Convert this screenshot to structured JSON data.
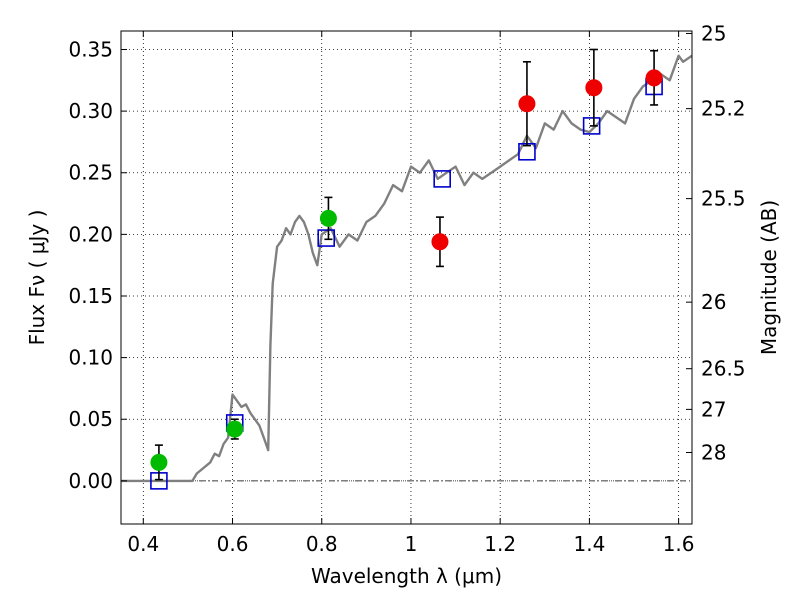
{
  "chart_data": {
    "type": "scatter",
    "xlabel": "Wavelength  λ (μm)",
    "ylabel": "Flux  Fν  ( μJy )",
    "y2label": "Magnitude (AB)",
    "xlim": [
      0.35,
      1.63
    ],
    "ylim": [
      -0.035,
      0.365
    ],
    "grid": true,
    "x_ticks": [
      {
        "value": 0.4,
        "label": "0.4"
      },
      {
        "value": 0.6,
        "label": "0.6"
      },
      {
        "value": 0.8,
        "label": "0.8"
      },
      {
        "value": 1.0,
        "label": "1"
      },
      {
        "value": 1.2,
        "label": "1.2"
      },
      {
        "value": 1.4,
        "label": "1.4"
      },
      {
        "value": 1.6,
        "label": "1.6"
      }
    ],
    "y_ticks": [
      {
        "value": 0.0,
        "label": "0.00"
      },
      {
        "value": 0.05,
        "label": "0.05"
      },
      {
        "value": 0.1,
        "label": "0.10"
      },
      {
        "value": 0.15,
        "label": "0.15"
      },
      {
        "value": 0.2,
        "label": "0.20"
      },
      {
        "value": 0.25,
        "label": "0.25"
      },
      {
        "value": 0.3,
        "label": "0.30"
      },
      {
        "value": 0.35,
        "label": "0.35"
      }
    ],
    "y2_ticks": [
      {
        "label": "25",
        "flux": 0.363
      },
      {
        "label": "25.2",
        "flux": 0.302
      },
      {
        "label": "25.5",
        "flux": 0.229
      },
      {
        "label": "26",
        "flux": 0.145
      },
      {
        "label": "26.5",
        "flux": 0.091
      },
      {
        "label": "27",
        "flux": 0.058
      },
      {
        "label": "28",
        "flux": 0.023
      }
    ],
    "series": [
      {
        "kind": "line",
        "color": "#808080",
        "points": [
          [
            0.35,
            0.0
          ],
          [
            0.51,
            0.0
          ],
          [
            0.52,
            0.006
          ],
          [
            0.55,
            0.015
          ],
          [
            0.56,
            0.022
          ],
          [
            0.57,
            0.02
          ],
          [
            0.58,
            0.03
          ],
          [
            0.59,
            0.035
          ],
          [
            0.6,
            0.07
          ],
          [
            0.61,
            0.065
          ],
          [
            0.62,
            0.06
          ],
          [
            0.63,
            0.062
          ],
          [
            0.64,
            0.055
          ],
          [
            0.65,
            0.05
          ],
          [
            0.66,
            0.045
          ],
          [
            0.67,
            0.035
          ],
          [
            0.68,
            0.025
          ],
          [
            0.685,
            0.11
          ],
          [
            0.69,
            0.16
          ],
          [
            0.7,
            0.19
          ],
          [
            0.71,
            0.195
          ],
          [
            0.72,
            0.205
          ],
          [
            0.73,
            0.2
          ],
          [
            0.74,
            0.21
          ],
          [
            0.75,
            0.215
          ],
          [
            0.76,
            0.21
          ],
          [
            0.77,
            0.2
          ],
          [
            0.78,
            0.185
          ],
          [
            0.79,
            0.175
          ],
          [
            0.8,
            0.2
          ],
          [
            0.82,
            0.205
          ],
          [
            0.84,
            0.19
          ],
          [
            0.86,
            0.2
          ],
          [
            0.88,
            0.195
          ],
          [
            0.9,
            0.21
          ],
          [
            0.92,
            0.215
          ],
          [
            0.94,
            0.225
          ],
          [
            0.96,
            0.24
          ],
          [
            0.98,
            0.235
          ],
          [
            1.0,
            0.255
          ],
          [
            1.02,
            0.25
          ],
          [
            1.04,
            0.26
          ],
          [
            1.06,
            0.245
          ],
          [
            1.08,
            0.25
          ],
          [
            1.1,
            0.255
          ],
          [
            1.12,
            0.24
          ],
          [
            1.14,
            0.25
          ],
          [
            1.16,
            0.245
          ],
          [
            1.18,
            0.25
          ],
          [
            1.2,
            0.255
          ],
          [
            1.22,
            0.26
          ],
          [
            1.24,
            0.265
          ],
          [
            1.26,
            0.28
          ],
          [
            1.28,
            0.27
          ],
          [
            1.3,
            0.29
          ],
          [
            1.32,
            0.285
          ],
          [
            1.34,
            0.3
          ],
          [
            1.36,
            0.29
          ],
          [
            1.38,
            0.285
          ],
          [
            1.4,
            0.283
          ],
          [
            1.42,
            0.29
          ],
          [
            1.44,
            0.3
          ],
          [
            1.46,
            0.295
          ],
          [
            1.48,
            0.29
          ],
          [
            1.5,
            0.31
          ],
          [
            1.52,
            0.32
          ],
          [
            1.54,
            0.325
          ],
          [
            1.56,
            0.33
          ],
          [
            1.58,
            0.325
          ],
          [
            1.6,
            0.345
          ],
          [
            1.61,
            0.34
          ],
          [
            1.63,
            0.345
          ]
        ]
      },
      {
        "kind": "square",
        "color": "#0000cc",
        "points": [
          [
            0.435,
            0.0
          ],
          [
            0.605,
            0.047
          ],
          [
            0.81,
            0.197
          ],
          [
            1.07,
            0.245
          ],
          [
            1.26,
            0.267
          ],
          [
            1.405,
            0.288
          ],
          [
            1.545,
            0.32
          ]
        ]
      },
      {
        "kind": "circle",
        "color": "#00bb00",
        "points": [
          {
            "x": 0.435,
            "y": 0.015,
            "err": 0.014
          },
          {
            "x": 0.605,
            "y": 0.042,
            "err": 0.008
          },
          {
            "x": 0.815,
            "y": 0.213,
            "err": 0.017
          }
        ]
      },
      {
        "kind": "circle",
        "color": "#ee0000",
        "points": [
          {
            "x": 1.065,
            "y": 0.194,
            "err": 0.02
          },
          {
            "x": 1.26,
            "y": 0.306,
            "err": 0.034
          },
          {
            "x": 1.41,
            "y": 0.319,
            "err": 0.031
          },
          {
            "x": 1.545,
            "y": 0.327,
            "err": 0.022
          }
        ]
      }
    ]
  }
}
